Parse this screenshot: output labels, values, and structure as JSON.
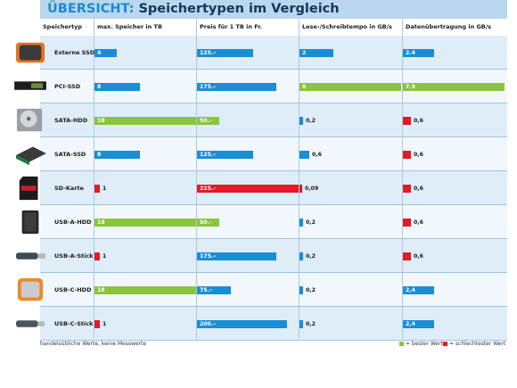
{
  "title": {
    "accent": "ÜBERSICHT:",
    "main": " Speichertypen im Vergleich"
  },
  "colors": {
    "normal": "#1a8ed4",
    "best": "#8bc43f",
    "worst": "#e21b25",
    "header_band": "#b9d7ee",
    "row_odd": "#deedf8",
    "row_even": "#f1f7fc"
  },
  "footnote": "handelsübliche Werte, keine Messwerte",
  "legend": [
    {
      "color": "best",
      "label": "= bester Wert"
    },
    {
      "color": "worst",
      "label": "= schlechtester Wert"
    }
  ],
  "chart_data": {
    "type": "bar",
    "title": "ÜBERSICHT: Speichertypen im Vergleich",
    "row_header": "Speichertyp",
    "categories": [
      "Externe SSD",
      "PCI-SSD",
      "SATA-HDD",
      "SATA-SSD",
      "SD-Karte",
      "USB-A-HDD",
      "USB-A-Stick",
      "USB-C-HDD",
      "USB-C-Stick"
    ],
    "icons": [
      "external-ssd-icon",
      "pci-ssd-icon",
      "sata-hdd-icon",
      "sata-ssd-icon",
      "sd-card-icon",
      "usb-a-hdd-icon",
      "usb-a-stick-icon",
      "usb-c-hdd-icon",
      "usb-c-stick-icon"
    ],
    "series": [
      {
        "name": "max. Speicher in TB",
        "max": 18,
        "values": [
          4,
          8,
          18,
          8,
          1,
          18,
          1,
          18,
          1
        ],
        "labels": [
          "4",
          "8",
          "18",
          "8",
          "1",
          "18",
          "1",
          "18",
          "1"
        ],
        "status": [
          "n",
          "n",
          "best",
          "n",
          "worst",
          "best",
          "worst",
          "best",
          "worst"
        ]
      },
      {
        "name": "Preis für 1 TB in Fr.",
        "max": 225,
        "values": [
          125,
          175,
          50,
          125,
          225,
          50,
          175,
          75,
          200
        ],
        "labels": [
          "125.–",
          "175.–",
          "50.–",
          "125.–",
          "225.–",
          "50.–",
          "175.–",
          "75.–",
          "200.–"
        ],
        "status": [
          "n",
          "n",
          "best",
          "n",
          "worst",
          "best",
          "n",
          "n",
          "n"
        ]
      },
      {
        "name": "Lese-/Schreibtempo in GB/s",
        "max": 6,
        "values": [
          2,
          6,
          0.2,
          0.6,
          0.09,
          0.2,
          0.2,
          0.2,
          0.2
        ],
        "labels": [
          "2",
          "6",
          "0,2",
          "0,6",
          "0,09",
          "0,2",
          "0,2",
          "0,2",
          "0,2"
        ],
        "status": [
          "n",
          "best",
          "n",
          "n",
          "worst",
          "n",
          "n",
          "n",
          "n"
        ]
      },
      {
        "name": "Datenübertragung in GB/s",
        "max": 7.9,
        "values": [
          2.4,
          7.9,
          0.6,
          0.6,
          0.6,
          0.6,
          0.6,
          2.4,
          2.4
        ],
        "labels": [
          "2.4",
          "7.9",
          "0,6",
          "0,6",
          "0,6",
          "0,6",
          "0,6",
          "2,4",
          "2,4"
        ],
        "status": [
          "n",
          "best",
          "worst",
          "worst",
          "worst",
          "worst",
          "worst",
          "n",
          "n"
        ]
      }
    ]
  }
}
